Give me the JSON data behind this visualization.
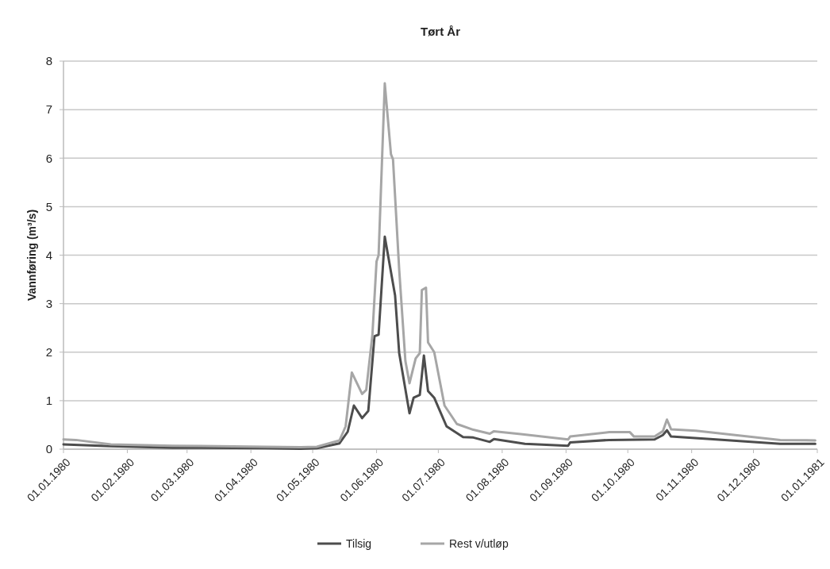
{
  "chart_data": {
    "type": "line",
    "title": "Tørt År",
    "ylabel": "Vannføring (m³/s)",
    "xlim": [
      "1980-01-01",
      "1981-01-01"
    ],
    "xticks": [
      {
        "value": "1980-01-01",
        "label": "01.01.1980"
      },
      {
        "value": "1980-02-01",
        "label": "01.02.1980"
      },
      {
        "value": "1980-03-01",
        "label": "01.03.1980"
      },
      {
        "value": "1980-04-01",
        "label": "01.04.1980"
      },
      {
        "value": "1980-05-01",
        "label": "01.05.1980"
      },
      {
        "value": "1980-06-01",
        "label": "01.06.1980"
      },
      {
        "value": "1980-07-01",
        "label": "01.07.1980"
      },
      {
        "value": "1980-08-01",
        "label": "01.08.1980"
      },
      {
        "value": "1980-09-01",
        "label": "01.09.1980"
      },
      {
        "value": "1980-10-01",
        "label": "01.10.1980"
      },
      {
        "value": "1980-11-01",
        "label": "01.11.1980"
      },
      {
        "value": "1980-12-01",
        "label": "01.12.1980"
      },
      {
        "value": "1981-01-01",
        "label": "01.01.1981"
      }
    ],
    "ylim": [
      0,
      8
    ],
    "yticks": [
      0,
      1,
      2,
      3,
      4,
      5,
      6,
      7,
      8
    ],
    "grid": "y",
    "legend": "bottom",
    "series": [
      {
        "name": "Tilsig",
        "color": "#4d4d4d",
        "x": [
          "1980-01-01",
          "1980-01-24",
          "1980-02-23",
          "1980-04-08",
          "1980-04-25",
          "1980-05-03",
          "1980-05-14",
          "1980-05-18",
          "1980-05-21",
          "1980-05-25",
          "1980-05-28",
          "1980-05-31",
          "1980-06-02",
          "1980-06-05",
          "1980-06-10",
          "1980-06-12",
          "1980-06-17",
          "1980-06-19",
          "1980-06-22",
          "1980-06-24",
          "1980-06-26",
          "1980-06-29",
          "1980-07-05",
          "1980-07-13",
          "1980-07-18",
          "1980-07-26",
          "1980-07-28",
          "1980-08-12",
          "1980-09-02",
          "1980-09-03",
          "1980-09-22",
          "1980-10-14",
          "1980-10-18",
          "1980-10-20",
          "1980-10-22",
          "1980-11-10",
          "1980-12-14",
          "1980-12-31"
        ],
        "values": [
          0.1,
          0.06,
          0.03,
          0.02,
          0.01,
          0.02,
          0.12,
          0.36,
          0.9,
          0.64,
          0.79,
          2.33,
          2.36,
          4.38,
          3.17,
          1.98,
          0.74,
          1.06,
          1.12,
          1.93,
          1.2,
          1.06,
          0.47,
          0.25,
          0.24,
          0.15,
          0.21,
          0.11,
          0.07,
          0.14,
          0.19,
          0.2,
          0.29,
          0.39,
          0.26,
          0.21,
          0.11,
          0.11
        ]
      },
      {
        "name": "Rest v/utløp",
        "color": "#a6a6a6",
        "x": [
          "1980-01-01",
          "1980-01-07",
          "1980-01-24",
          "1980-02-23",
          "1980-04-08",
          "1980-04-25",
          "1980-05-03",
          "1980-05-14",
          "1980-05-17",
          "1980-05-20",
          "1980-05-25",
          "1980-05-27",
          "1980-05-30",
          "1980-06-01",
          "1980-06-02",
          "1980-06-05",
          "1980-06-08",
          "1980-06-09",
          "1980-06-12",
          "1980-06-15",
          "1980-06-17",
          "1980-06-20",
          "1980-06-22",
          "1980-06-23",
          "1980-06-25",
          "1980-06-26",
          "1980-06-29",
          "1980-07-04",
          "1980-07-10",
          "1980-07-18",
          "1980-07-26",
          "1980-07-28",
          "1980-08-10",
          "1980-09-02",
          "1980-09-03",
          "1980-09-22",
          "1980-10-02",
          "1980-10-04",
          "1980-10-14",
          "1980-10-18",
          "1980-10-20",
          "1980-10-22",
          "1980-11-03",
          "1980-12-14",
          "1980-12-31"
        ],
        "values": [
          0.2,
          0.19,
          0.1,
          0.07,
          0.05,
          0.04,
          0.05,
          0.18,
          0.47,
          1.58,
          1.14,
          1.22,
          2.36,
          3.87,
          4.0,
          7.54,
          6.08,
          5.97,
          3.7,
          1.82,
          1.36,
          1.87,
          1.98,
          3.28,
          3.33,
          2.2,
          2.0,
          0.9,
          0.52,
          0.4,
          0.32,
          0.37,
          0.31,
          0.2,
          0.26,
          0.35,
          0.35,
          0.26,
          0.26,
          0.37,
          0.61,
          0.41,
          0.38,
          0.19,
          0.18
        ]
      }
    ]
  }
}
